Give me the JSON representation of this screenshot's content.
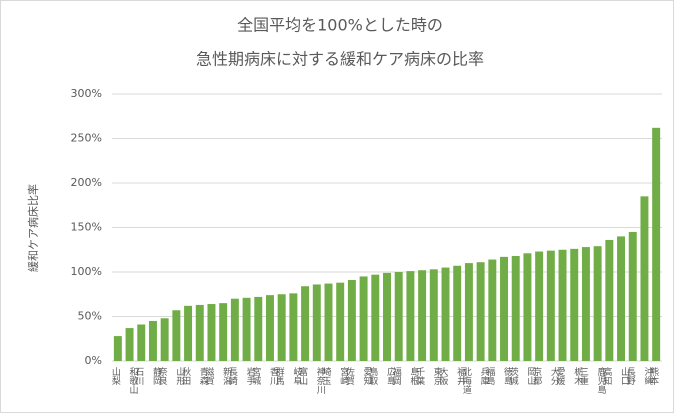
{
  "chart_data": {
    "type": "bar",
    "title_lines": [
      "全国平均を100%とした時の",
      "急性期病床に対する緩和ケア病床の比率"
    ],
    "y_label": "緩和ケア病床比率",
    "categories": [
      "山梨",
      "和歌山",
      "石川",
      "静岡",
      "奈良",
      "山形",
      "秋田",
      "青森",
      "滋賀",
      "新潟",
      "長崎",
      "岩手",
      "宮城",
      "香川",
      "群馬",
      "岐阜",
      "富山",
      "神奈川",
      "埼玉",
      "宮崎",
      "佐賀",
      "愛知",
      "鳥取",
      "広島",
      "福岡",
      "島根",
      "千葉",
      "東京",
      "大阪",
      "福井",
      "北海道",
      "兵庫",
      "福島",
      "徳島",
      "茨城",
      "岡山",
      "京都",
      "大分",
      "愛媛",
      "栃木",
      "三重",
      "鹿児島",
      "高知",
      "山口",
      "長野",
      "沖縄",
      "熊本"
    ],
    "values": [
      28,
      37,
      41,
      45,
      48,
      57,
      62,
      63,
      64,
      65,
      70,
      71,
      72,
      74,
      75,
      76,
      84,
      86,
      87,
      88,
      91,
      95,
      97,
      99,
      100,
      101,
      102,
      103,
      105,
      107,
      110,
      111,
      114,
      117,
      118,
      121,
      123,
      124,
      125,
      126,
      128,
      129,
      136,
      140,
      145,
      185,
      262
    ],
    "color": "#70ad47",
    "ylim": [
      0,
      300
    ],
    "yticks": [
      {
        "value": 0,
        "label": "0%"
      },
      {
        "value": 50,
        "label": "50%"
      },
      {
        "value": 100,
        "label": "100%"
      },
      {
        "value": 150,
        "label": "150%"
      },
      {
        "value": 200,
        "label": "200%"
      },
      {
        "value": 250,
        "label": "250%"
      },
      {
        "value": 300,
        "label": "300%"
      }
    ],
    "grid": true
  }
}
